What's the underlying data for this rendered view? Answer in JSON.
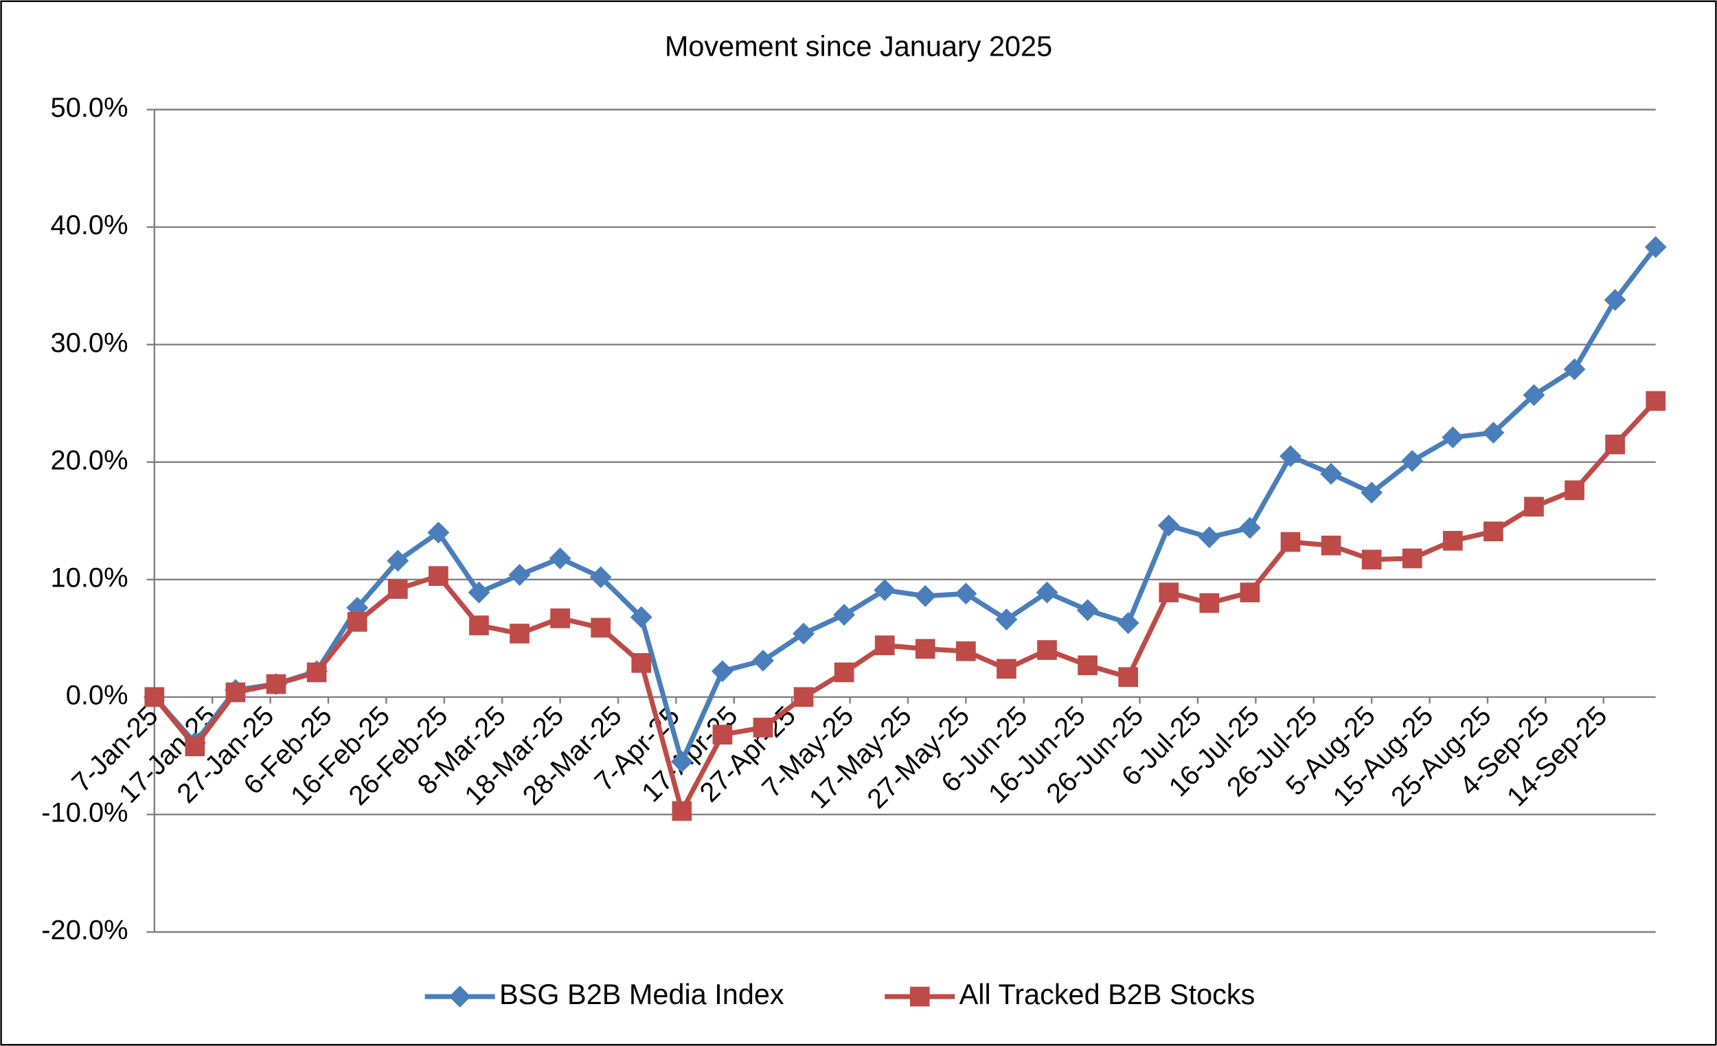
{
  "chart_data": {
    "type": "line",
    "title": "Movement since January 2025",
    "x": [
      "2025-01-07",
      "2025-01-14",
      "2025-01-21",
      "2025-01-28",
      "2025-02-04",
      "2025-02-11",
      "2025-02-18",
      "2025-02-25",
      "2025-03-04",
      "2025-03-11",
      "2025-03-18",
      "2025-03-25",
      "2025-04-01",
      "2025-04-08",
      "2025-04-15",
      "2025-04-22",
      "2025-04-29",
      "2025-05-06",
      "2025-05-13",
      "2025-05-20",
      "2025-05-27",
      "2025-06-03",
      "2025-06-10",
      "2025-06-17",
      "2025-06-24",
      "2025-07-01",
      "2025-07-08",
      "2025-07-15",
      "2025-07-22",
      "2025-07-29",
      "2025-08-05",
      "2025-08-12",
      "2025-08-19",
      "2025-08-26",
      "2025-09-02",
      "2025-09-09",
      "2025-09-16",
      "2025-09-23"
    ],
    "series": [
      {
        "name": "BSG B2B Media Index",
        "color": "#4a7ebb",
        "marker": "diamond",
        "values": [
          0,
          -3.9,
          0.6,
          1.1,
          2.2,
          7.6,
          11.6,
          14.0,
          8.9,
          10.4,
          11.8,
          10.2,
          6.8,
          -5.5,
          2.2,
          3.1,
          5.4,
          7.0,
          9.1,
          8.6,
          8.8,
          6.6,
          8.9,
          7.4,
          6.3,
          14.6,
          13.6,
          14.4,
          20.5,
          19.0,
          17.4,
          20.1,
          22.1,
          22.5,
          25.7,
          27.9,
          33.8,
          38.3
        ]
      },
      {
        "name": "All Tracked B2B Stocks",
        "color": "#be4b48",
        "marker": "square",
        "values": [
          0,
          -4.2,
          0.4,
          1.1,
          2.1,
          6.4,
          9.2,
          10.3,
          6.1,
          5.4,
          6.7,
          5.9,
          2.9,
          -9.7,
          -3.2,
          -2.6,
          0.0,
          2.1,
          4.4,
          4.1,
          3.9,
          2.4,
          4.0,
          2.7,
          1.7,
          8.9,
          8.0,
          8.9,
          13.2,
          12.9,
          11.7,
          11.8,
          13.3,
          14.1,
          16.2,
          17.6,
          21.5,
          25.2
        ]
      }
    ],
    "xlim": [
      "2025-01-07",
      "2025-09-23"
    ],
    "xticks": [
      {
        "value": "2025-01-07",
        "label": "7-Jan-25"
      },
      {
        "value": "2025-01-17",
        "label": "17-Jan-25"
      },
      {
        "value": "2025-01-27",
        "label": "27-Jan-25"
      },
      {
        "value": "2025-02-06",
        "label": "6-Feb-25"
      },
      {
        "value": "2025-02-16",
        "label": "16-Feb-25"
      },
      {
        "value": "2025-02-26",
        "label": "26-Feb-25"
      },
      {
        "value": "2025-03-08",
        "label": "8-Mar-25"
      },
      {
        "value": "2025-03-18",
        "label": "18-Mar-25"
      },
      {
        "value": "2025-03-28",
        "label": "28-Mar-25"
      },
      {
        "value": "2025-04-07",
        "label": "7-Apr-25"
      },
      {
        "value": "2025-04-17",
        "label": "17-Apr-25"
      },
      {
        "value": "2025-04-27",
        "label": "27-Apr-25"
      },
      {
        "value": "2025-05-07",
        "label": "7-May-25"
      },
      {
        "value": "2025-05-17",
        "label": "17-May-25"
      },
      {
        "value": "2025-05-27",
        "label": "27-May-25"
      },
      {
        "value": "2025-06-06",
        "label": "6-Jun-25"
      },
      {
        "value": "2025-06-16",
        "label": "16-Jun-25"
      },
      {
        "value": "2025-06-26",
        "label": "26-Jun-25"
      },
      {
        "value": "2025-07-06",
        "label": "6-Jul-25"
      },
      {
        "value": "2025-07-16",
        "label": "16-Jul-25"
      },
      {
        "value": "2025-07-26",
        "label": "26-Jul-25"
      },
      {
        "value": "2025-08-05",
        "label": "5-Aug-25"
      },
      {
        "value": "2025-08-15",
        "label": "15-Aug-25"
      },
      {
        "value": "2025-08-25",
        "label": "25-Aug-25"
      },
      {
        "value": "2025-09-04",
        "label": "4-Sep-25"
      },
      {
        "value": "2025-09-14",
        "label": "14-Sep-25"
      }
    ],
    "ylim": [
      -20,
      50
    ],
    "yticks": [
      {
        "value": -20,
        "label": "-20.0%"
      },
      {
        "value": -10,
        "label": "-10.0%"
      },
      {
        "value": 0,
        "label": "0.0%"
      },
      {
        "value": 10,
        "label": "10.0%"
      },
      {
        "value": 20,
        "label": "20.0%"
      },
      {
        "value": 30,
        "label": "30.0%"
      },
      {
        "value": 40,
        "label": "40.0%"
      },
      {
        "value": 50,
        "label": "50.0%"
      }
    ],
    "grid": true,
    "legend": "bottom"
  }
}
